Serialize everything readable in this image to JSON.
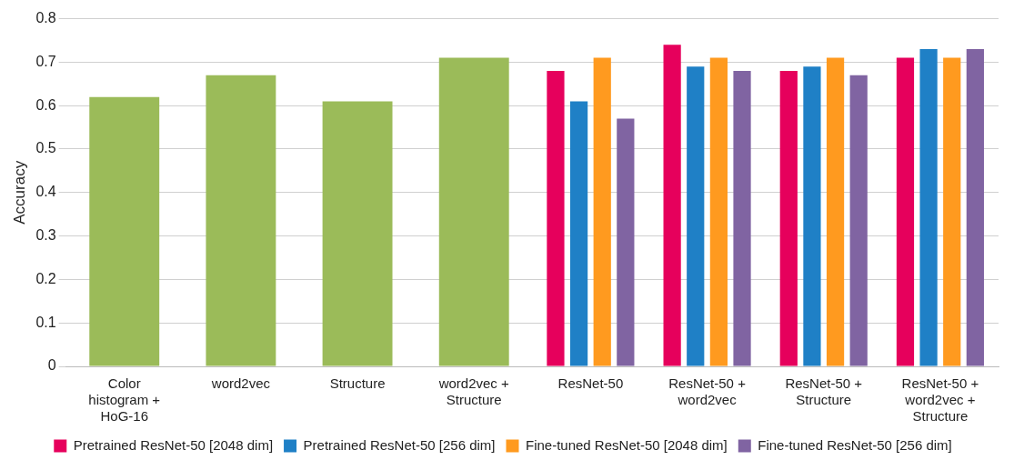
{
  "chart_data": {
    "type": "bar",
    "ylabel": "Accuracy",
    "categories": [
      "Color histogram + HoG-16",
      "word2vec",
      "Structure",
      "word2vec + Structure",
      "ResNet-50",
      "ResNet-50 + word2vec",
      "ResNet-50 + Structure",
      "ResNet-50 + word2vec + Structure"
    ],
    "series": [
      {
        "color": "#9bbb59",
        "values": [
          0.62,
          0.67,
          0.61,
          0.71,
          null,
          null,
          null,
          null
        ]
      },
      {
        "name": "Pretrained ResNet-50 [2048 dim]",
        "color": "#e6005c",
        "values": [
          null,
          null,
          null,
          null,
          0.68,
          0.74,
          0.68,
          0.71
        ]
      },
      {
        "name": "Pretrained ResNet-50 [256 dim]",
        "color": "#1f80c6",
        "values": [
          null,
          null,
          null,
          null,
          0.61,
          0.69,
          0.69,
          0.73
        ]
      },
      {
        "name": "Fine-tuned ResNet-50 [2048 dim]",
        "color": "#ff9a1f",
        "values": [
          null,
          null,
          null,
          null,
          0.71,
          0.71,
          0.71,
          0.71
        ]
      },
      {
        "name": "Fine-tuned ResNet-50 [256 dim]",
        "color": "#8064a2",
        "values": [
          null,
          null,
          null,
          null,
          0.57,
          0.68,
          0.67,
          0.73
        ]
      }
    ],
    "ylim": [
      0,
      0.8
    ],
    "yticks": [
      0,
      0.1,
      0.2,
      0.3,
      0.4,
      0.5,
      0.6,
      0.7,
      0.8
    ],
    "grid": "y",
    "legend": "bottom"
  }
}
